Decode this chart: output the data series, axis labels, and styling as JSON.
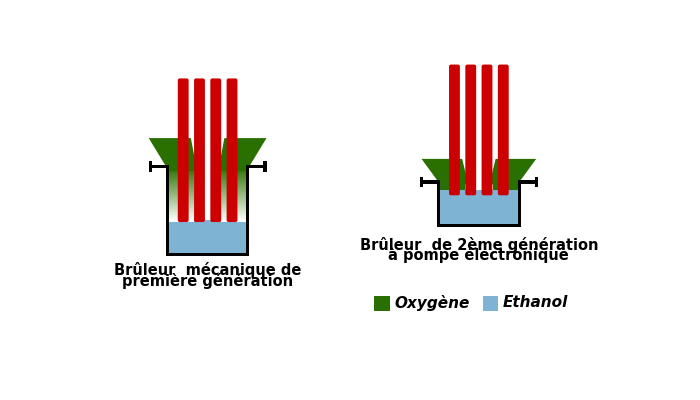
{
  "bg_color": "#ffffff",
  "red_color": "#cc0000",
  "green_color": "#2a7000",
  "blue_color": "#7fb3d3",
  "black_color": "#000000",
  "label1_line1": "Brûleur  mécanique de",
  "label1_line2": "première génération",
  "label2_line1": "Brûleur  de 2ème génération",
  "label2_line2": "à pompe électronique",
  "legend_oxy": "Oxygène",
  "legend_eth": "Ethanol",
  "font_size_label": 10.5,
  "font_size_legend": 11
}
